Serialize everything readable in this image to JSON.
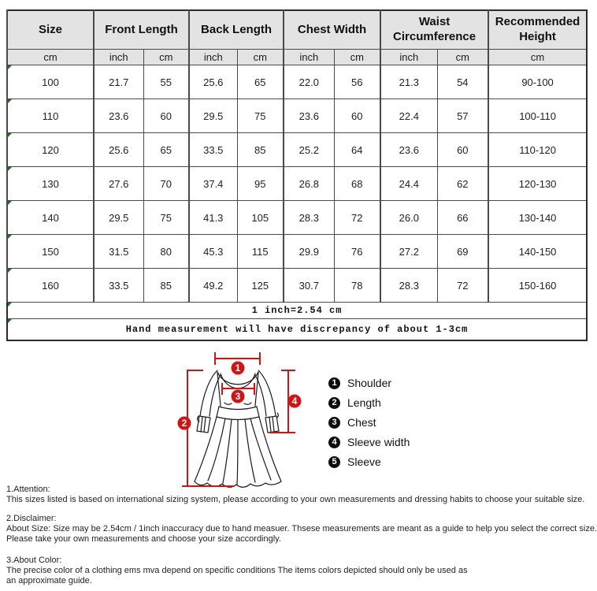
{
  "size_chart": {
    "header_groups": [
      {
        "label": "Size",
        "span": 1
      },
      {
        "label": "Front Length",
        "span": 2
      },
      {
        "label": "Back Length",
        "span": 2
      },
      {
        "label": "Chest Width",
        "span": 2
      },
      {
        "label": "Waist Circumference",
        "span": 2
      },
      {
        "label": "Recommended Height",
        "span": 1
      }
    ],
    "unit_row": [
      "cm",
      "inch",
      "cm",
      "inch",
      "cm",
      "inch",
      "cm",
      "inch",
      "cm",
      "cm"
    ],
    "rows": [
      [
        "100",
        "21.7",
        "55",
        "25.6",
        "65",
        "22.0",
        "56",
        "21.3",
        "54",
        "90-100"
      ],
      [
        "110",
        "23.6",
        "60",
        "29.5",
        "75",
        "23.6",
        "60",
        "22.4",
        "57",
        "100-110"
      ],
      [
        "120",
        "25.6",
        "65",
        "33.5",
        "85",
        "25.2",
        "64",
        "23.6",
        "60",
        "110-120"
      ],
      [
        "130",
        "27.6",
        "70",
        "37.4",
        "95",
        "26.8",
        "68",
        "24.4",
        "62",
        "120-130"
      ],
      [
        "140",
        "29.5",
        "75",
        "41.3",
        "105",
        "28.3",
        "72",
        "26.0",
        "66",
        "130-140"
      ],
      [
        "150",
        "31.5",
        "80",
        "45.3",
        "115",
        "29.9",
        "76",
        "27.2",
        "69",
        "140-150"
      ],
      [
        "160",
        "33.5",
        "85",
        "49.2",
        "125",
        "30.7",
        "78",
        "28.3",
        "72",
        "150-160"
      ]
    ],
    "notes": [
      "1 inch=2.54 cm",
      "Hand measurement will have discrepancy of about 1-3cm"
    ]
  },
  "diagram": {
    "markers": [
      "1",
      "2",
      "3",
      "4"
    ],
    "legend": [
      {
        "num": "1",
        "label": "Shoulder"
      },
      {
        "num": "2",
        "label": "Length"
      },
      {
        "num": "3",
        "label": "Chest"
      },
      {
        "num": "4",
        "label": "Sleeve width"
      },
      {
        "num": "5",
        "label": "Sleeve"
      }
    ]
  },
  "sections": [
    {
      "heading": "1.Attention:",
      "lines": [
        "This sizes listed is based on international sizing system, please according to your own measurements and dressing habits to choose your suitable size."
      ]
    },
    {
      "heading": "2.Disclaimer:",
      "lines": [
        "About Size: Size may be 2.54cm / 1inch inaccuracy due to hand measuer. Thsese measurements are meant as a guide to help you select the correct size.",
        "Please take your own measurements and choose your size accordingly."
      ]
    },
    {
      "heading": "3.About Color:",
      "lines": [
        "The precise color of a clothing ems mva depend on specific conditions The items colors depicted should only be used as",
        "an approximate guide."
      ]
    }
  ],
  "colors": {
    "header_bg": "#e3e3e3",
    "inner_border": "#4a4a4a",
    "outer_border": "#2b2b2b",
    "annotation_red": "#d41414",
    "corner_triangle_green": "#1f6c24",
    "legend_circle": "#0d0d0d"
  }
}
